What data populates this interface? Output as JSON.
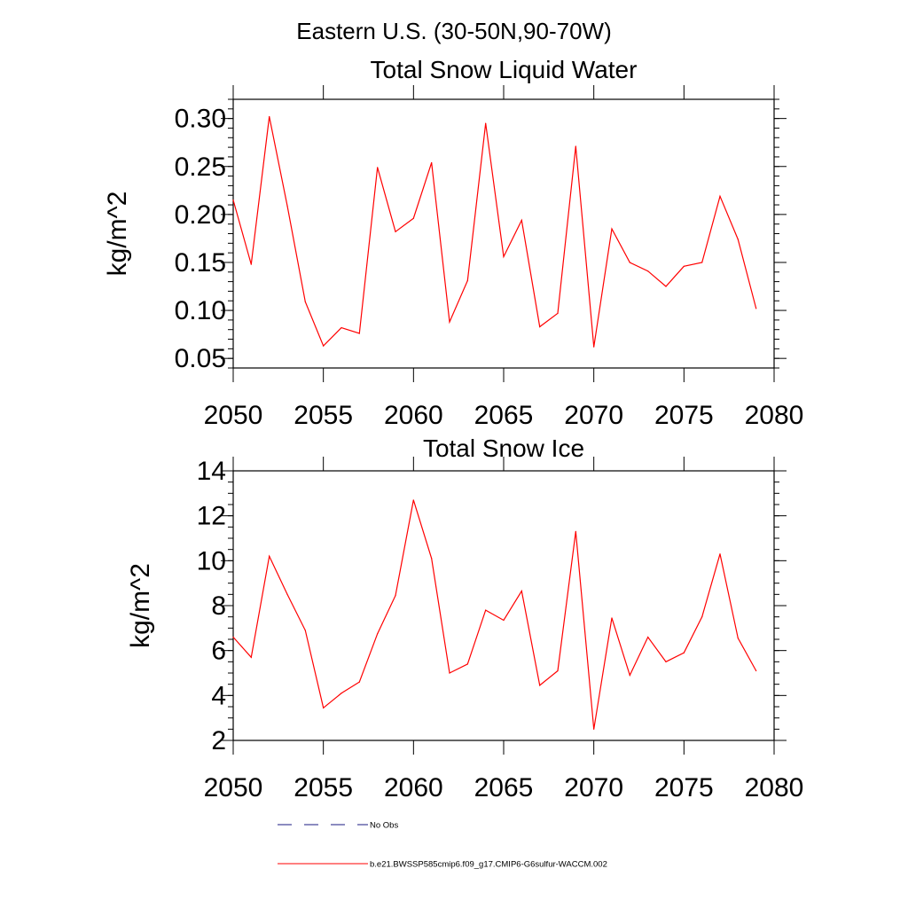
{
  "figure_title": "Eastern U.S. (30-50N,90-70W)",
  "legend": {
    "entries": [
      {
        "label": "No Obs",
        "style": "dashed",
        "color": "#1a1a80"
      },
      {
        "label": "b.e21.BWSSP585cmip6.f09_g17.CMIP6-G6sulfur-WACCM.002",
        "style": "solid",
        "color": "#ff0000"
      }
    ]
  },
  "chart_data": [
    {
      "type": "line",
      "title": "Total Snow Liquid Water",
      "xlabel": "",
      "ylabel": "kg/m^2",
      "xlim": [
        2050,
        2080
      ],
      "ylim": [
        0.04,
        0.32
      ],
      "x_ticks": [
        2050,
        2055,
        2060,
        2065,
        2070,
        2075,
        2080
      ],
      "y_ticks": [
        "0.05",
        "0.10",
        "0.15",
        "0.20",
        "0.25",
        "0.30"
      ],
      "y_tick_values": [
        0.05,
        0.1,
        0.15,
        0.2,
        0.25,
        0.3
      ],
      "y_minor_step": 0.01,
      "line_color": "#ff0000",
      "x": [
        2050,
        2051,
        2052,
        2053,
        2054,
        2055,
        2056,
        2057,
        2058,
        2059,
        2060,
        2061,
        2062,
        2063,
        2064,
        2065,
        2066,
        2067,
        2068,
        2069,
        2070,
        2071,
        2072,
        2073,
        2074,
        2075,
        2076,
        2077,
        2078,
        2079
      ],
      "values": [
        0.215,
        0.148,
        0.302,
        0.209,
        0.109,
        0.063,
        0.082,
        0.076,
        0.249,
        0.182,
        0.196,
        0.254,
        0.088,
        0.131,
        0.295,
        0.156,
        0.194,
        0.083,
        0.097,
        0.271,
        0.062,
        0.185,
        0.15,
        0.141,
        0.125,
        0.146,
        0.15,
        0.219,
        0.174,
        0.102
      ]
    },
    {
      "type": "line",
      "title": "Total Snow Ice",
      "xlabel": "",
      "ylabel": "kg/m^2",
      "xlim": [
        2050,
        2080
      ],
      "ylim": [
        2,
        14
      ],
      "x_ticks": [
        2050,
        2055,
        2060,
        2065,
        2070,
        2075,
        2080
      ],
      "y_ticks": [
        "2",
        "4",
        "6",
        "8",
        "10",
        "12",
        "14"
      ],
      "y_tick_values": [
        2,
        4,
        6,
        8,
        10,
        12,
        14
      ],
      "y_minor_step": 0.5,
      "line_color": "#ff0000",
      "x": [
        2050,
        2051,
        2052,
        2053,
        2054,
        2055,
        2056,
        2057,
        2058,
        2059,
        2060,
        2061,
        2062,
        2063,
        2064,
        2065,
        2066,
        2067,
        2068,
        2069,
        2070,
        2071,
        2072,
        2073,
        2074,
        2075,
        2076,
        2077,
        2078,
        2079
      ],
      "values": [
        6.6,
        5.7,
        10.2,
        8.5,
        6.9,
        3.45,
        4.1,
        4.6,
        6.75,
        8.45,
        12.7,
        10.1,
        5.0,
        5.4,
        7.8,
        7.35,
        8.65,
        4.45,
        5.1,
        11.3,
        2.5,
        7.45,
        4.9,
        6.6,
        5.5,
        5.9,
        7.5,
        10.3,
        6.55,
        5.1
      ]
    }
  ]
}
